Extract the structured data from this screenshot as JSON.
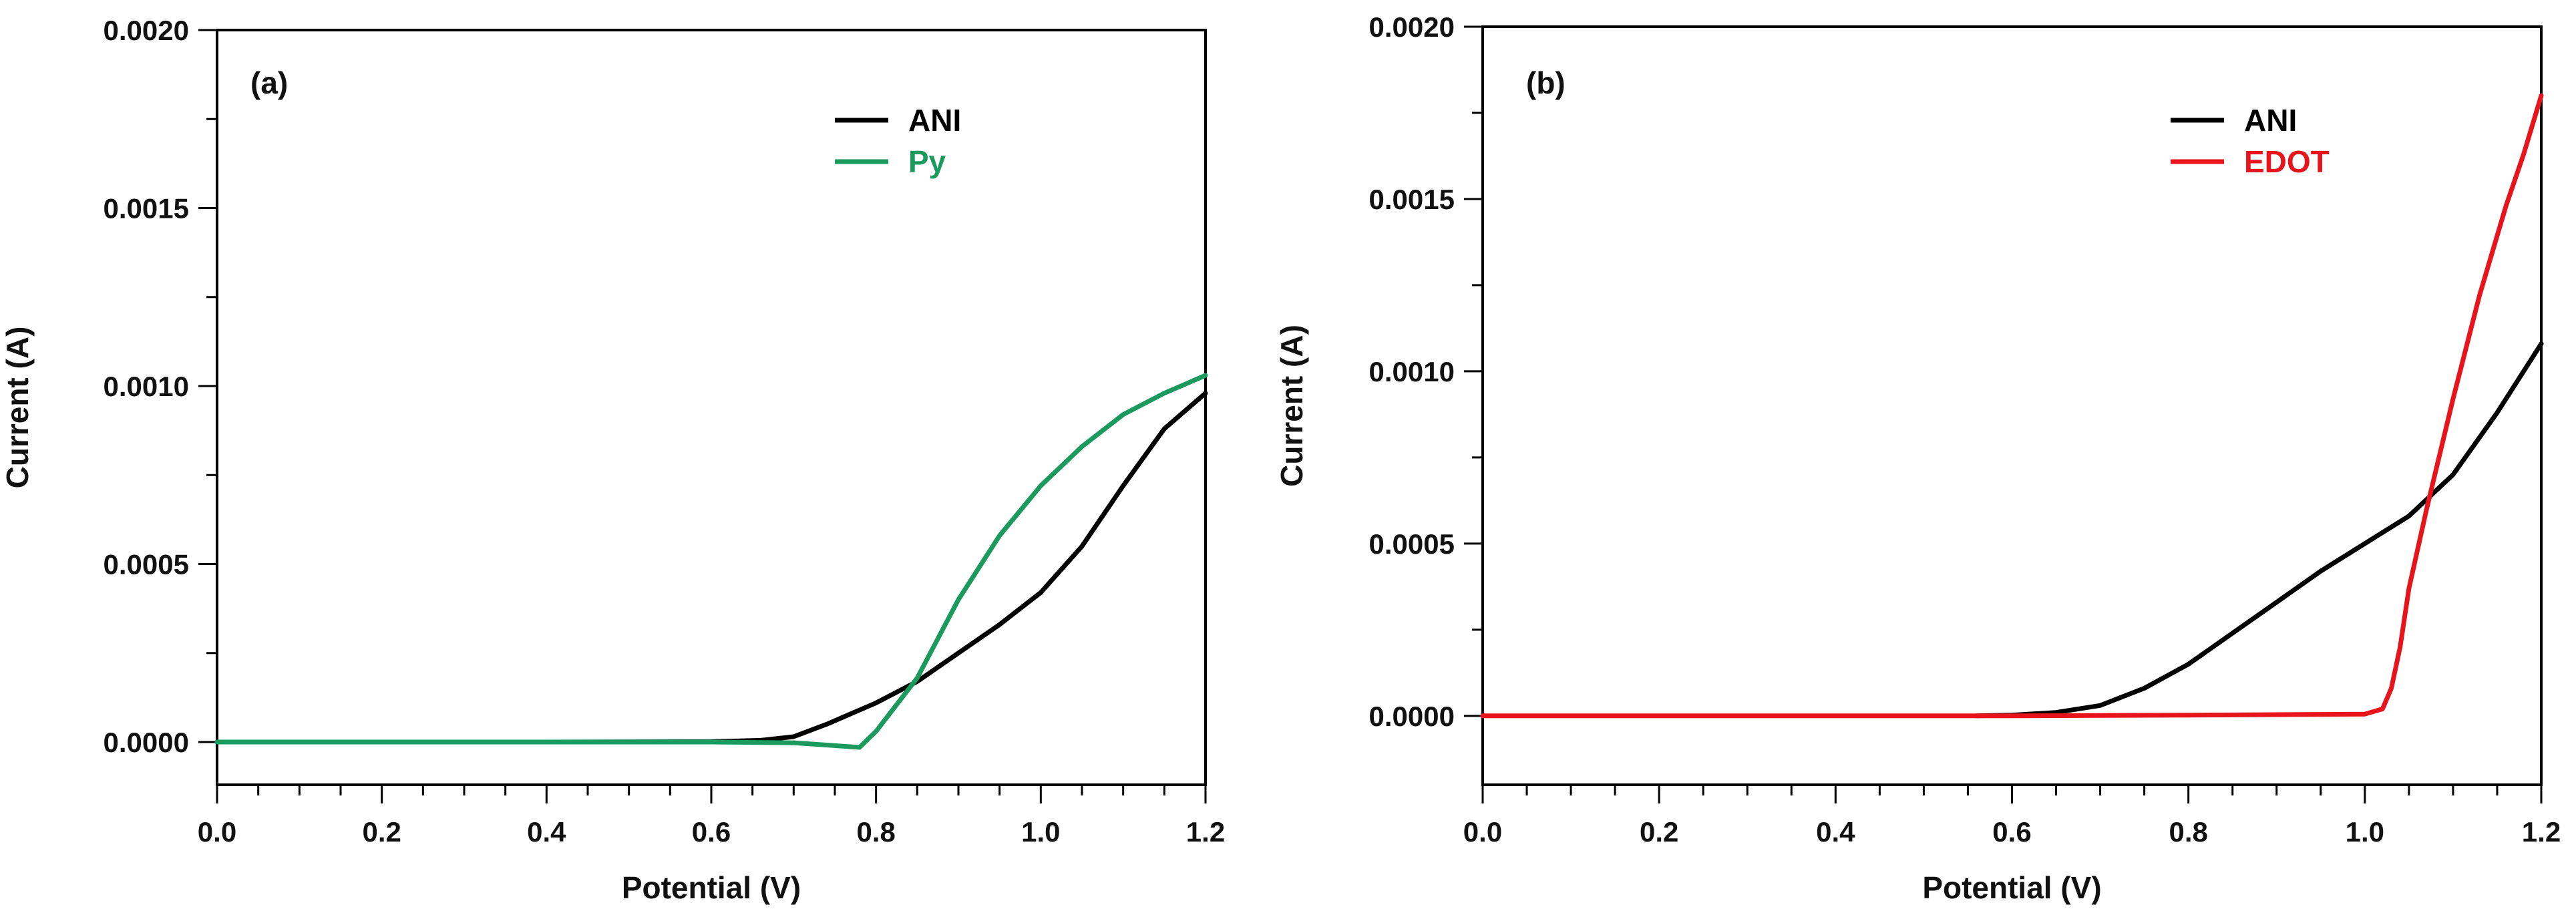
{
  "chart_data": [
    {
      "type": "line",
      "panel_label": "(a)",
      "xlabel": "Potential (V)",
      "ylabel": "Current (A)",
      "xlim": [
        0.0,
        1.2
      ],
      "ylim": [
        -0.00012,
        0.002
      ],
      "xticks": [
        "0.0",
        "0.2",
        "0.4",
        "0.6",
        "0.8",
        "1.0",
        "1.2"
      ],
      "yticks": [
        "0.0000",
        "0.0005",
        "0.0010",
        "0.0015",
        "0.0020"
      ],
      "legend_position": "top-right",
      "series": [
        {
          "name": "ANI",
          "color": "#000000",
          "x": [
            0.0,
            0.2,
            0.4,
            0.6,
            0.66,
            0.7,
            0.74,
            0.8,
            0.85,
            0.9,
            0.95,
            1.0,
            1.05,
            1.1,
            1.15,
            1.2
          ],
          "y": [
            0.0,
            0.0,
            0.0,
            1e-06,
            5e-06,
            1.5e-05,
            5e-05,
            0.00011,
            0.00017,
            0.00025,
            0.00033,
            0.00042,
            0.00055,
            0.00072,
            0.00088,
            0.00098
          ]
        },
        {
          "name": "Py",
          "color": "#1a9a5c",
          "x": [
            0.0,
            0.2,
            0.4,
            0.6,
            0.7,
            0.75,
            0.78,
            0.8,
            0.85,
            0.9,
            0.95,
            1.0,
            1.05,
            1.1,
            1.15,
            1.2
          ],
          "y": [
            0.0,
            0.0,
            0.0,
            0.0,
            -2e-06,
            -1e-05,
            -1.5e-05,
            3e-05,
            0.00018,
            0.0004,
            0.00058,
            0.00072,
            0.00083,
            0.00092,
            0.00098,
            0.00103
          ]
        }
      ]
    },
    {
      "type": "line",
      "panel_label": "(b)",
      "xlabel": "Potential (V)",
      "ylabel": "Current (A)",
      "xlim": [
        0.0,
        1.2
      ],
      "ylim": [
        -0.0002,
        0.002
      ],
      "xticks": [
        "0.0",
        "0.2",
        "0.4",
        "0.6",
        "0.8",
        "1.0",
        "1.2"
      ],
      "yticks": [
        "0.0000",
        "0.0005",
        "0.0010",
        "0.0015",
        "0.0020"
      ],
      "legend_position": "top-right",
      "series": [
        {
          "name": "ANI",
          "color": "#000000",
          "x": [
            0.56,
            0.6,
            0.65,
            0.7,
            0.75,
            0.8,
            0.85,
            0.9,
            0.95,
            1.0,
            1.05,
            1.1,
            1.15,
            1.2
          ],
          "y": [
            0.0,
            2e-06,
            1e-05,
            3e-05,
            8e-05,
            0.00015,
            0.00024,
            0.00033,
            0.00042,
            0.0005,
            0.00058,
            0.0007,
            0.00088,
            0.00108
          ]
        },
        {
          "name": "EDOT",
          "color": "#e8141c",
          "x": [
            0.0,
            0.2,
            0.4,
            0.6,
            0.8,
            1.0,
            1.02,
            1.03,
            1.04,
            1.05,
            1.07,
            1.1,
            1.13,
            1.16,
            1.18,
            1.2
          ],
          "y": [
            0.0,
            0.0,
            0.0,
            0.0,
            2e-06,
            5e-06,
            2e-05,
            8e-05,
            0.0002,
            0.00037,
            0.0006,
            0.00092,
            0.00122,
            0.00148,
            0.00163,
            0.0018
          ]
        }
      ]
    }
  ]
}
